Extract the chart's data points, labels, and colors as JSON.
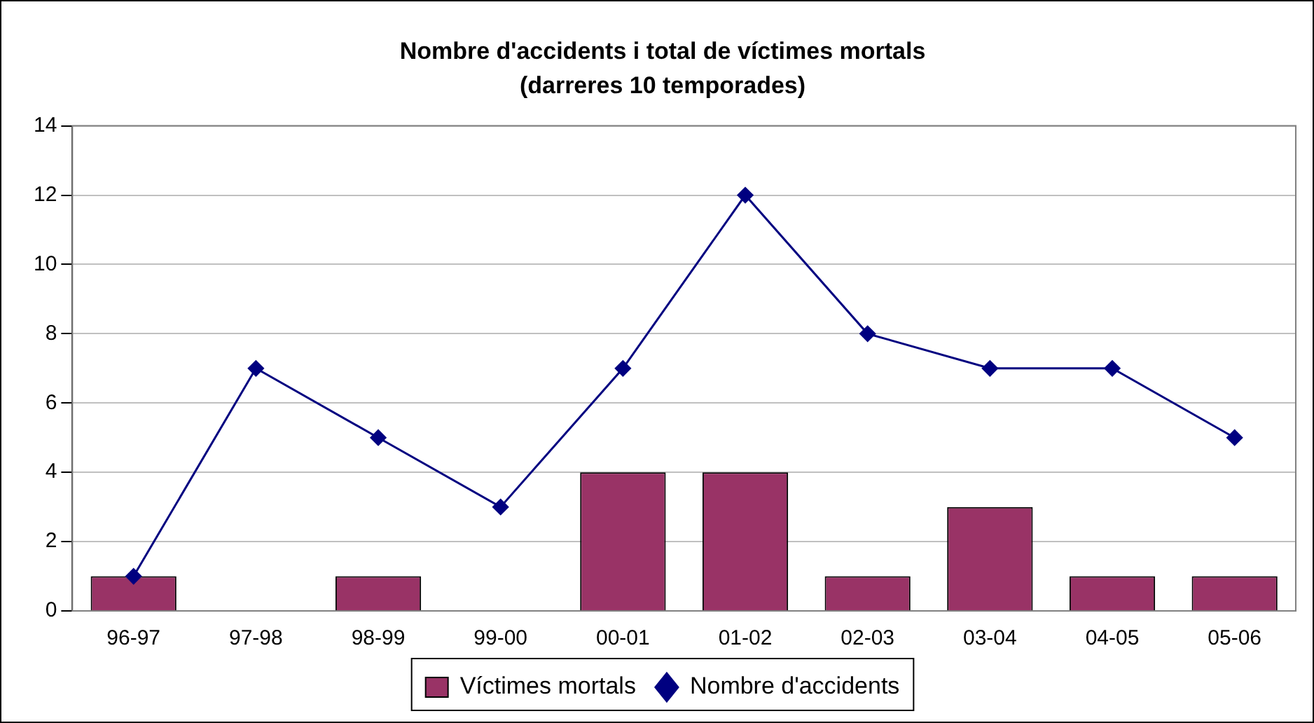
{
  "chart_data": {
    "type": "bar",
    "title": "Nombre d'accidents i total de víctimes mortals",
    "subtitle": "(darreres 10 temporades)",
    "categories": [
      "96-97",
      "97-98",
      "98-99",
      "99-00",
      "00-01",
      "01-02",
      "02-03",
      "03-04",
      "04-05",
      "05-06"
    ],
    "series": [
      {
        "name": "Víctimes mortals",
        "color": "#993366",
        "values": [
          1,
          0,
          1,
          0,
          4,
          4,
          1,
          3,
          1,
          1
        ]
      },
      {
        "name": "Nombre d'accidents",
        "type": "line",
        "color": "#000080",
        "values": [
          1,
          7,
          5,
          3,
          7,
          12,
          8,
          7,
          7,
          5
        ]
      }
    ],
    "ylim": [
      0,
      14
    ],
    "yticks": [
      0,
      2,
      4,
      6,
      8,
      10,
      12,
      14
    ],
    "grid": "y",
    "legend": "bottom",
    "marker": "diamond"
  }
}
